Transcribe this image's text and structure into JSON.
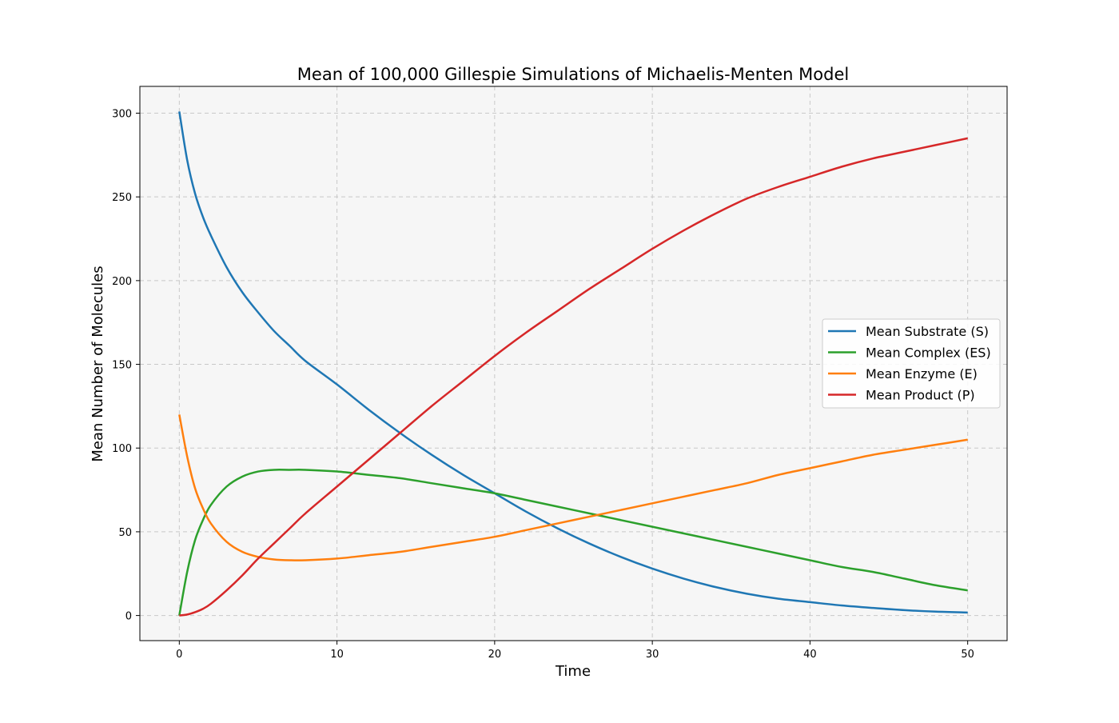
{
  "chart_data": {
    "type": "line",
    "title": "Mean of 100,000 Gillespie Simulations of Michaelis-Menten Model",
    "xlabel": "Time",
    "ylabel": "Mean Number of Molecules",
    "xlim": [
      -2.5,
      52.5
    ],
    "ylim": [
      -15,
      316
    ],
    "xticks": [
      0,
      10,
      20,
      30,
      40,
      50
    ],
    "yticks": [
      0,
      50,
      100,
      150,
      200,
      250,
      300
    ],
    "grid": true,
    "legend_position": "center-right",
    "x": [
      0,
      0.5,
      1,
      1.5,
      2,
      3,
      4,
      5,
      6,
      7,
      8,
      10,
      12,
      14,
      16,
      18,
      20,
      22,
      24,
      26,
      28,
      30,
      32,
      34,
      36,
      38,
      40,
      42,
      44,
      46,
      48,
      50
    ],
    "series": [
      {
        "name": "Mean Substrate (S)",
        "color": "#1f77b4",
        "values": [
          301,
          272,
          252,
          238,
          227,
          208,
          193,
          181,
          170,
          161,
          152,
          138,
          123,
          109,
          96,
          84,
          73,
          62,
          52,
          43,
          35,
          28,
          22,
          17,
          13,
          10,
          8,
          6,
          4.5,
          3.2,
          2.3,
          1.8
        ]
      },
      {
        "name": "Mean Complex (ES)",
        "color": "#2ca02c",
        "values": [
          0,
          26,
          45,
          57,
          66,
          77,
          83,
          86,
          87,
          87,
          87,
          86,
          84,
          82,
          79,
          76,
          73,
          69,
          65,
          61,
          57,
          53,
          49,
          45,
          41,
          37,
          33,
          29,
          26,
          22,
          18,
          15
        ]
      },
      {
        "name": "Mean Enzyme (E)",
        "color": "#ff7f0e",
        "values": [
          120,
          95,
          76,
          64,
          55,
          44,
          38,
          35,
          33.5,
          33,
          33,
          34,
          36,
          38,
          41,
          44,
          47,
          51,
          55,
          59,
          63,
          67,
          71,
          75,
          79,
          84,
          88,
          92,
          96,
          99,
          102,
          105
        ]
      },
      {
        "name": "Mean Product (P)",
        "color": "#d62728",
        "values": [
          0,
          0.6,
          2,
          4,
          7,
          15,
          24,
          34,
          43,
          52,
          61,
          77,
          93,
          109,
          125,
          140,
          155,
          169,
          182,
          195,
          207,
          219,
          230,
          240,
          249,
          256,
          262,
          268,
          273,
          277,
          281,
          285
        ]
      }
    ]
  }
}
